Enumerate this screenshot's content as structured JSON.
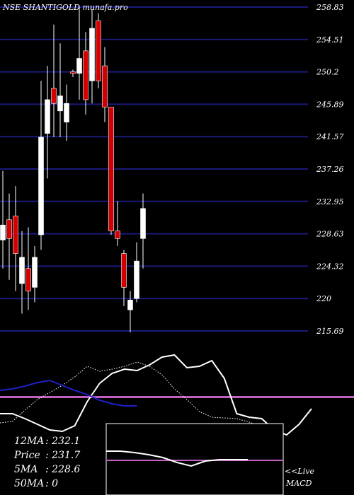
{
  "chart_data": [
    {
      "type": "candlestick",
      "title": "NSE SHANTIGOLD munafa.pro",
      "yticks": [
        258.83,
        254.51,
        250.2,
        245.89,
        241.57,
        237.26,
        232.95,
        228.63,
        224.32,
        220,
        215.69
      ],
      "ylim": [
        215.69,
        258.83
      ],
      "candles": [
        {
          "o": 227.8,
          "h": 237.0,
          "l": 224.0,
          "c": 229.8,
          "color": "white"
        },
        {
          "o": 230.5,
          "h": 234.0,
          "l": 222.5,
          "c": 228.0,
          "color": "red"
        },
        {
          "o": 231.0,
          "h": 235.0,
          "l": 221.0,
          "c": 226.0,
          "color": "red"
        },
        {
          "o": 225.5,
          "h": 229.0,
          "l": 218.0,
          "c": 222.0,
          "color": "white"
        },
        {
          "o": 224.0,
          "h": 229.5,
          "l": 218.5,
          "c": 221.0,
          "color": "red"
        },
        {
          "o": 221.5,
          "h": 227.0,
          "l": 219.5,
          "c": 225.5,
          "color": "white"
        },
        {
          "o": 228.5,
          "h": 249.0,
          "l": 226.5,
          "c": 241.5,
          "color": "white"
        },
        {
          "o": 242.0,
          "h": 251.0,
          "l": 236.0,
          "c": 246.5,
          "color": "white"
        },
        {
          "o": 246.0,
          "h": 256.5,
          "l": 241.5,
          "c": 248.0,
          "color": "red"
        },
        {
          "o": 245.0,
          "h": 254.0,
          "l": 241.5,
          "c": 247.0,
          "color": "white"
        },
        {
          "o": 243.5,
          "h": 248.5,
          "l": 241.0,
          "c": 246.0,
          "color": "white"
        },
        {
          "o": 250.0,
          "h": 250.5,
          "l": 249.5,
          "c": 250.2,
          "color": "red"
        },
        {
          "o": 250.0,
          "h": 259.0,
          "l": 246.5,
          "c": 252.0,
          "color": "white"
        },
        {
          "o": 253.0,
          "h": 255.5,
          "l": 244.5,
          "c": 246.5,
          "color": "red"
        },
        {
          "o": 249.0,
          "h": 258.5,
          "l": 246.0,
          "c": 256.0,
          "color": "white"
        },
        {
          "o": 257.0,
          "h": 258.0,
          "l": 248.0,
          "c": 249.0,
          "color": "red"
        },
        {
          "o": 251.0,
          "h": 253.5,
          "l": 243.5,
          "c": 245.5,
          "color": "red"
        },
        {
          "o": 245.5,
          "h": 245.5,
          "l": 228.5,
          "c": 229.0,
          "color": "red"
        },
        {
          "o": 229.0,
          "h": 233.0,
          "l": 227.0,
          "c": 228.0,
          "color": "red"
        },
        {
          "o": 226.0,
          "h": 226.5,
          "l": 219.0,
          "c": 221.5,
          "color": "red"
        },
        {
          "o": 218.5,
          "h": 221.0,
          "l": 215.5,
          "c": 219.8,
          "color": "white"
        },
        {
          "o": 220.0,
          "h": 227.5,
          "l": 219.5,
          "c": 225.0,
          "color": "white"
        },
        {
          "o": 228.0,
          "h": 234.0,
          "l": 224.0,
          "c": 232.0,
          "color": "white"
        }
      ],
      "stats": [
        {
          "label": "12MA",
          "value": "232.1"
        },
        {
          "label": "Price",
          "value": "231.7"
        },
        {
          "label": "5MA",
          "value": "228.6"
        },
        {
          "label": "50MA",
          "value": "0"
        }
      ]
    },
    {
      "type": "line",
      "title": "MACD",
      "label": "<<Live MACD",
      "series": [
        {
          "style": "solid-white",
          "values": [
            585,
            585,
            592,
            600,
            608,
            610,
            602,
            568,
            542,
            528,
            522,
            524,
            516,
            505,
            502,
            520,
            518,
            510,
            535,
            585,
            590,
            592,
            608,
            615,
            600,
            578
          ]
        },
        {
          "style": "dotted-white",
          "values": [
            598,
            596,
            580,
            565,
            555,
            545,
            533,
            518,
            525,
            522,
            518,
            512,
            518,
            530,
            550,
            565,
            582,
            590,
            591,
            592,
            597,
            603
          ]
        },
        {
          "style": "solid-blue",
          "values": [
            552,
            550,
            546,
            541,
            538,
            545,
            552,
            558,
            566,
            571,
            574,
            574
          ]
        }
      ],
      "inset_series": [
        {
          "style": "solid-white",
          "values": [
            638,
            638,
            640,
            643,
            647,
            654,
            659,
            652,
            650,
            650,
            650
          ]
        }
      ]
    }
  ]
}
